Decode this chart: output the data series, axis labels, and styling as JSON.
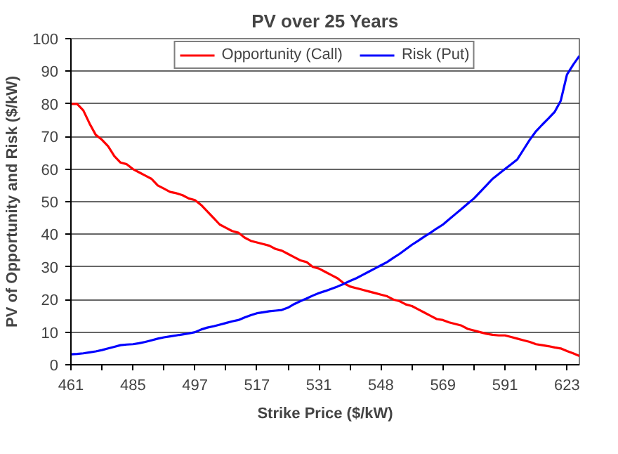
{
  "chart_data": {
    "type": "line",
    "title": "PV over 25 Years",
    "xlabel": "Strike Price ($/kW)",
    "ylabel": "PV of Opportunity and Risk ($/kW)",
    "categories": [
      "461",
      null,
      null,
      null,
      null,
      null,
      null,
      null,
      null,
      null,
      "485",
      null,
      null,
      null,
      null,
      null,
      null,
      null,
      null,
      null,
      "497",
      null,
      null,
      null,
      null,
      null,
      null,
      null,
      null,
      null,
      "517",
      null,
      null,
      null,
      null,
      null,
      null,
      null,
      null,
      null,
      "531",
      null,
      null,
      null,
      null,
      null,
      null,
      null,
      null,
      null,
      "548",
      null,
      null,
      null,
      null,
      null,
      null,
      null,
      null,
      null,
      "569",
      null,
      null,
      null,
      null,
      null,
      null,
      null,
      null,
      null,
      "591",
      null,
      null,
      null,
      null,
      null,
      null,
      null,
      null,
      null,
      "623",
      null,
      null
    ],
    "series": [
      {
        "name": "Opportunity (Call)",
        "color": "#ff0000",
        "values": [
          80,
          80,
          78,
          74,
          70.5,
          69,
          67,
          64,
          62,
          61.5,
          60,
          59,
          58,
          57,
          55,
          54,
          53,
          52.6,
          52,
          51,
          50.5,
          49,
          47,
          45,
          43,
          42,
          41,
          40.5,
          39,
          38,
          37.5,
          37,
          36.5,
          35.5,
          35,
          34,
          33,
          32,
          31.5,
          30,
          29.5,
          28.5,
          27.5,
          26.5,
          25,
          24,
          23.5,
          23,
          22.5,
          22,
          21.5,
          21,
          20,
          19.5,
          18.5,
          18,
          17,
          16,
          15,
          14,
          13.7,
          13,
          12.5,
          12,
          11,
          10.5,
          10,
          9.5,
          9.2,
          9,
          9,
          8.5,
          8,
          7.5,
          7,
          6.3,
          6,
          5.7,
          5.3,
          5,
          4.2,
          3.5,
          2.7
        ]
      },
      {
        "name": "Risk (Put)",
        "color": "#0000ff",
        "values": [
          3.2,
          3.3,
          3.5,
          3.8,
          4.1,
          4.5,
          5,
          5.5,
          6,
          6.2,
          6.3,
          6.6,
          7,
          7.5,
          8,
          8.4,
          8.7,
          9,
          9.3,
          9.6,
          10,
          10.8,
          11.4,
          11.8,
          12.3,
          12.8,
          13.3,
          13.7,
          14.5,
          15.2,
          15.8,
          16.1,
          16.4,
          16.6,
          16.8,
          17.5,
          18.6,
          19.5,
          20.3,
          21.2,
          22,
          22.6,
          23.3,
          24,
          24.8,
          25.7,
          26.5,
          27.5,
          28.5,
          29.5,
          30.5,
          31.5,
          32.8,
          34,
          35.4,
          36.8,
          38,
          39.3,
          40.5,
          41.8,
          43,
          44.6,
          46.2,
          47.8,
          49.4,
          51,
          53,
          55,
          57,
          58.5,
          60,
          61.5,
          63,
          66,
          69,
          71.6,
          73.6,
          75.5,
          77.5,
          81,
          89,
          92,
          94.7
        ]
      }
    ],
    "ylim": [
      0,
      100
    ],
    "yticks": [
      0,
      10,
      20,
      30,
      40,
      50,
      60,
      70,
      80,
      90,
      100
    ],
    "grid": "y",
    "legend": "top",
    "marker": "none",
    "line_style": "solid"
  }
}
